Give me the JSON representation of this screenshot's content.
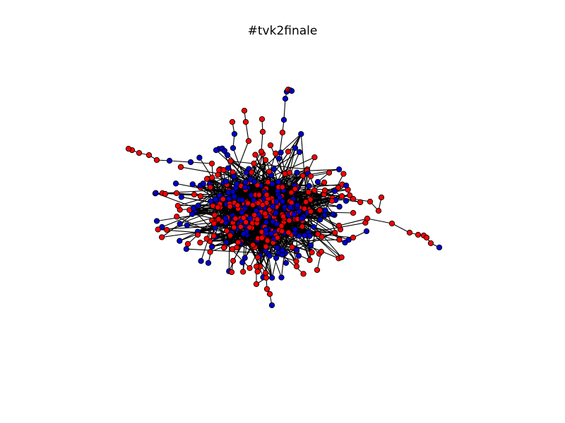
{
  "title": "#tvk2finale",
  "diagram": {
    "type": "network-graph",
    "node_colors": {
      "red": "#ff0000",
      "blue": "#0000cc"
    },
    "node_stroke": "#000000",
    "edge_color": "#000000"
  }
}
